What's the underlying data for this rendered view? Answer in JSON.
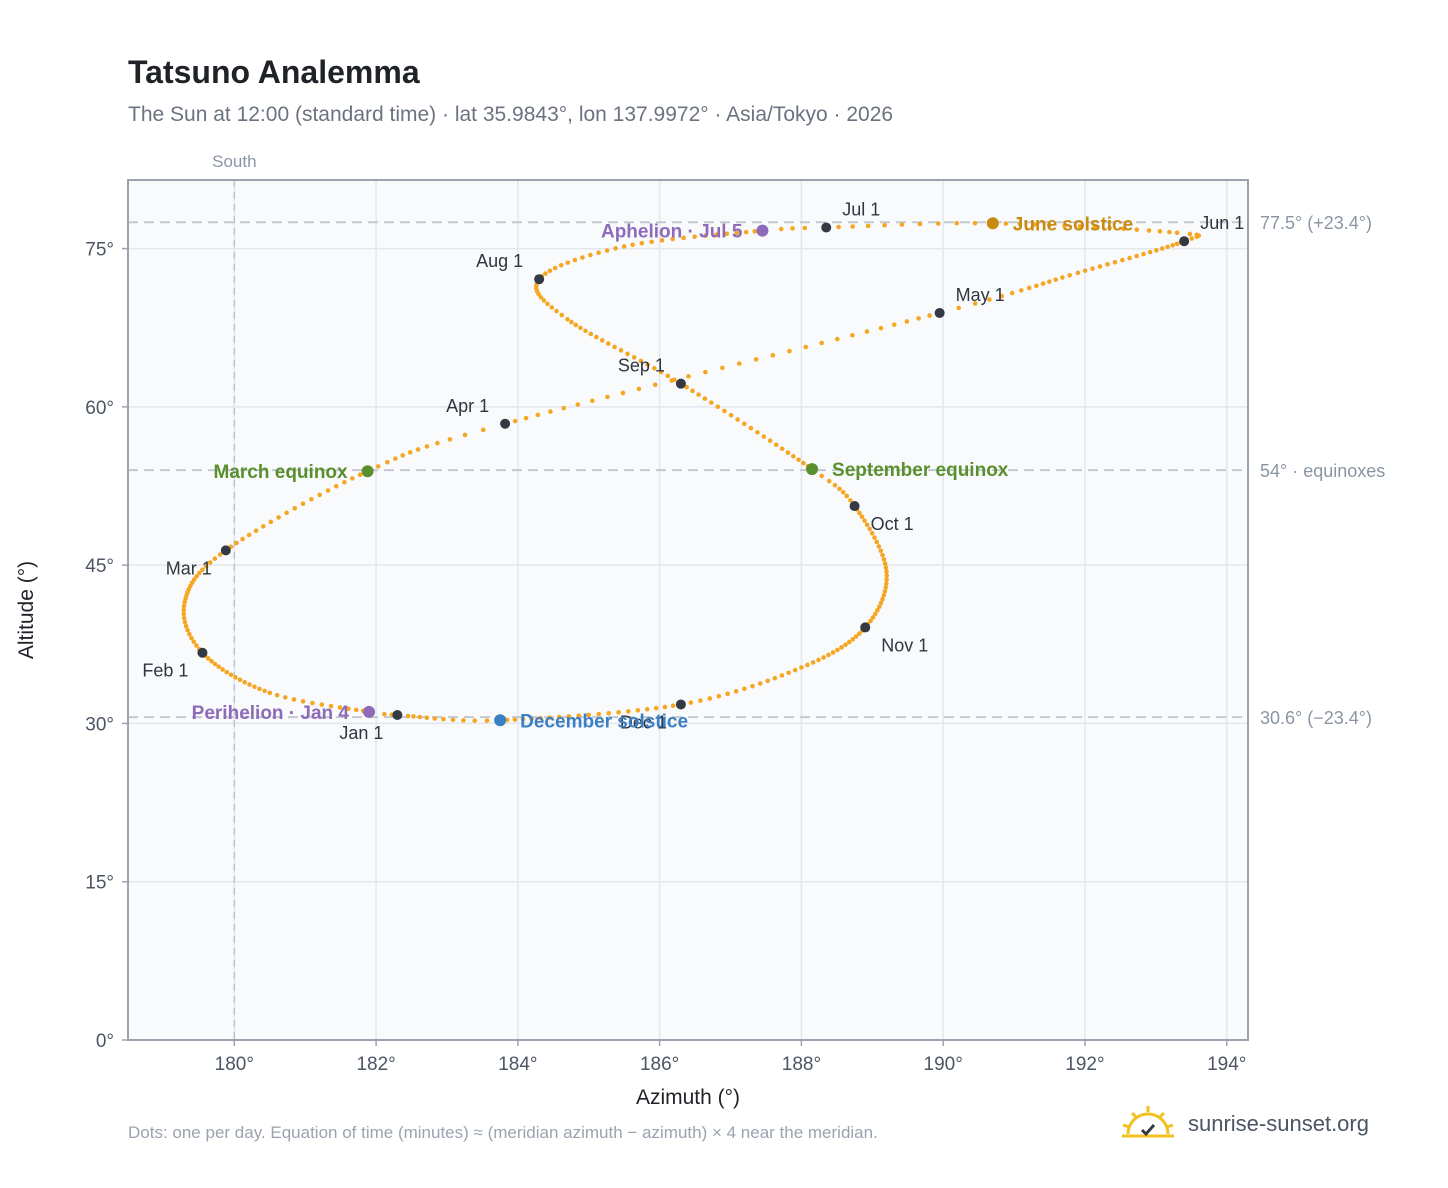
{
  "title": "Tatsuno Analemma",
  "subtitle": "The Sun at 12:00 (standard time) · lat 35.9843°, lon 137.9972° · Asia/Tokyo · 2026",
  "footnote": "Dots: one per day. Equation of time (minutes) ≈ (meridian azimuth − azimuth) × 4 near the meridian.",
  "brand": {
    "name": "sunrise-sunset.org",
    "logo_icon": "sun-check-icon"
  },
  "colors": {
    "path": "#f5a623",
    "month_marker": "#333a44",
    "equinox": "#5a8f2e",
    "june_solstice": "#c98a10",
    "december_solstice": "#3b7fc4",
    "apsis": "#8e6bb8",
    "reference_line": "#c4c9d1",
    "south_line": "#b6c6d8",
    "plot_background": "#f8fafc",
    "frame": "#9ca3af"
  },
  "chart_data": {
    "type": "scatter",
    "title": "Tatsuno Analemma",
    "xlabel": "Azimuth (°)",
    "ylabel": "Altitude (°)",
    "xlim": [
      178.5,
      194.3
    ],
    "ylim": [
      0,
      81.5
    ],
    "x_ticks": [
      180,
      182,
      184,
      186,
      188,
      190,
      192,
      194
    ],
    "x_tick_labels": [
      "180°",
      "182°",
      "184°",
      "186°",
      "188°",
      "190°",
      "192°",
      "194°"
    ],
    "y_ticks": [
      0,
      15,
      30,
      45,
      60,
      75
    ],
    "y_tick_labels": [
      "0°",
      "15°",
      "30°",
      "45°",
      "60°",
      "75°"
    ],
    "grid": true,
    "south_line": {
      "x": 180,
      "label": "South"
    },
    "reference_lines": [
      {
        "y": 77.5,
        "label": "77.5° (+23.4°)"
      },
      {
        "y": 54,
        "label": "54° · equinoxes"
      },
      {
        "y": 30.6,
        "label": "30.6° (−23.4°)"
      }
    ],
    "series": [
      {
        "points_per": "day",
        "anchors": [
          {
            "doy": 1,
            "az": 182.3,
            "alt": 30.8
          },
          {
            "doy": 4,
            "az": 181.9,
            "alt": 31.1
          },
          {
            "doy": 16,
            "az": 180.5,
            "alt": 32.9
          },
          {
            "doy": 32,
            "az": 179.55,
            "alt": 36.7
          },
          {
            "doy": 45,
            "az": 179.3,
            "alt": 41.5
          },
          {
            "doy": 60,
            "az": 179.88,
            "alt": 46.4
          },
          {
            "doy": 79,
            "az": 181.88,
            "alt": 53.9
          },
          {
            "doy": 91,
            "az": 183.82,
            "alt": 58.4
          },
          {
            "doy": 121,
            "az": 189.95,
            "alt": 68.9
          },
          {
            "doy": 135,
            "az": 191.9,
            "alt": 72.7
          },
          {
            "doy": 152,
            "az": 193.4,
            "alt": 75.7
          },
          {
            "doy": 158,
            "az": 193.3,
            "alt": 76.5
          },
          {
            "doy": 172,
            "az": 190.7,
            "alt": 77.4
          },
          {
            "doy": 182,
            "az": 188.35,
            "alt": 77.0
          },
          {
            "doy": 186,
            "az": 187.45,
            "alt": 76.7
          },
          {
            "doy": 200,
            "az": 185.5,
            "alt": 75.2
          },
          {
            "doy": 213,
            "az": 184.3,
            "alt": 72.1
          },
          {
            "doy": 225,
            "az": 184.7,
            "alt": 68.3
          },
          {
            "doy": 244,
            "az": 186.3,
            "alt": 62.2
          },
          {
            "doy": 266,
            "az": 188.15,
            "alt": 54.1
          },
          {
            "doy": 274,
            "az": 188.75,
            "alt": 50.6
          },
          {
            "doy": 290,
            "az": 189.2,
            "alt": 44.4
          },
          {
            "doy": 305,
            "az": 188.9,
            "alt": 39.1
          },
          {
            "doy": 320,
            "az": 188.0,
            "alt": 35.3
          },
          {
            "doy": 335,
            "az": 186.3,
            "alt": 31.8
          },
          {
            "doy": 355,
            "az": 183.75,
            "alt": 30.3
          },
          {
            "doy": 365,
            "az": 182.45,
            "alt": 30.7
          }
        ]
      }
    ],
    "month_markers": [
      {
        "label": "Jan 1",
        "az": 182.3,
        "alt": 30.8,
        "pos": "below-left"
      },
      {
        "label": "Feb 1",
        "az": 179.55,
        "alt": 36.7,
        "pos": "below-left"
      },
      {
        "label": "Mar 1",
        "az": 179.88,
        "alt": 46.4,
        "pos": "below-left"
      },
      {
        "label": "Apr 1",
        "az": 183.82,
        "alt": 58.4,
        "pos": "above-left"
      },
      {
        "label": "May 1",
        "az": 189.95,
        "alt": 68.9,
        "pos": "above-right"
      },
      {
        "label": "Jun 1",
        "az": 193.4,
        "alt": 75.7,
        "pos": "above-right"
      },
      {
        "label": "Jul 1",
        "az": 188.35,
        "alt": 77.0,
        "pos": "above-right"
      },
      {
        "label": "Aug 1",
        "az": 184.3,
        "alt": 72.1,
        "pos": "above-left"
      },
      {
        "label": "Sep 1",
        "az": 186.3,
        "alt": 62.2,
        "pos": "above-left"
      },
      {
        "label": "Oct 1",
        "az": 188.75,
        "alt": 50.6,
        "pos": "below-right"
      },
      {
        "label": "Nov 1",
        "az": 188.9,
        "alt": 39.1,
        "pos": "below-right"
      },
      {
        "label": "Dec 1",
        "az": 186.3,
        "alt": 31.8,
        "pos": "below-left"
      }
    ],
    "events": [
      {
        "label": "March equinox",
        "az": 181.88,
        "alt": 53.9,
        "color_key": "equinox",
        "side": "left"
      },
      {
        "label": "September equinox",
        "az": 188.15,
        "alt": 54.1,
        "color_key": "equinox",
        "side": "right"
      },
      {
        "label": "June solstice",
        "az": 190.7,
        "alt": 77.4,
        "color_key": "june_solstice",
        "side": "right"
      },
      {
        "label": "December solstice",
        "az": 183.75,
        "alt": 30.3,
        "color_key": "december_solstice",
        "side": "right"
      },
      {
        "label": "Aphelion · Jul 5",
        "az": 187.45,
        "alt": 76.7,
        "color_key": "apsis",
        "side": "left"
      },
      {
        "label": "Perihelion · Jan 4",
        "az": 181.9,
        "alt": 31.1,
        "color_key": "apsis",
        "side": "left"
      }
    ]
  }
}
